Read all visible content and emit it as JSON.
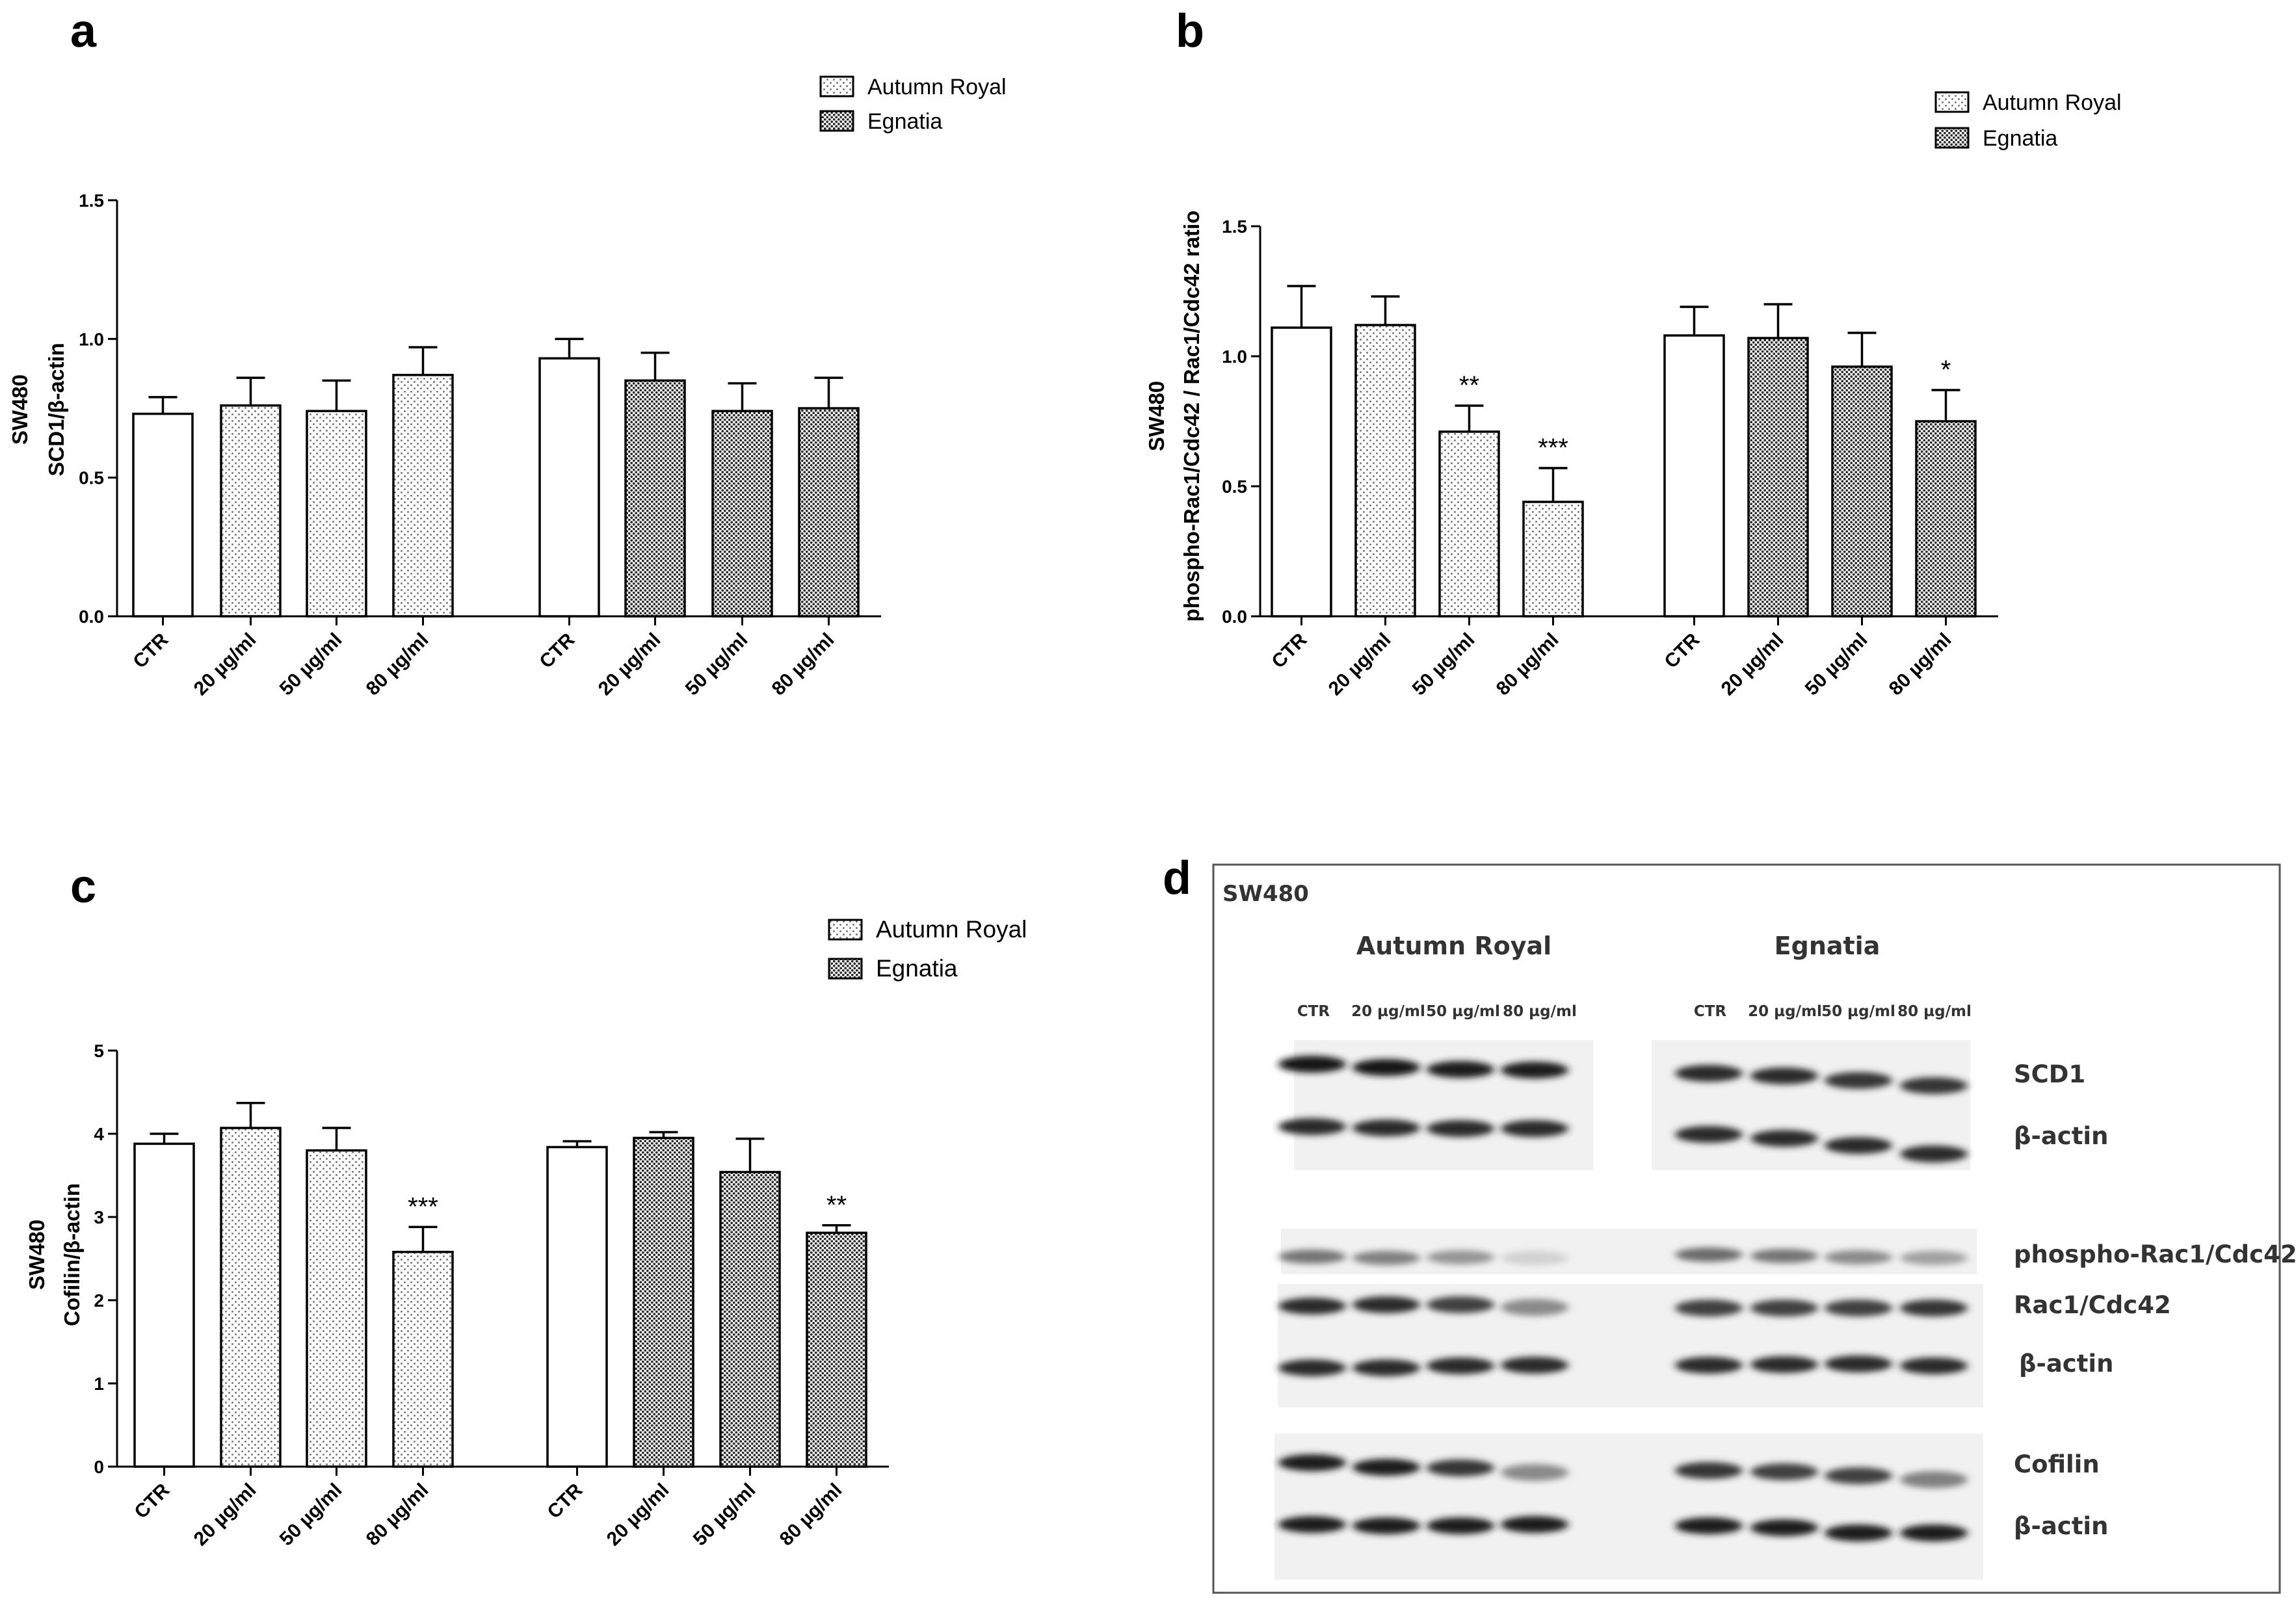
{
  "figure": {
    "panel_labels": [
      "a",
      "b",
      "c",
      "d"
    ]
  },
  "patterns": {
    "autumn": {
      "name": "Autumn Royal",
      "dot_color": "#7a7a7a"
    },
    "egnatia": {
      "name": "Egnatia",
      "dot_color": "#2a2a2a"
    }
  },
  "chart_data": [
    {
      "panel": "a",
      "type": "bar",
      "ylabel_line1": "SW480",
      "ylabel_line2": "SCD1/β-actin",
      "ylim": [
        0,
        1.5
      ],
      "yticks": [
        "0.0",
        "0.5",
        "1.0",
        "1.5"
      ],
      "ytick_values": [
        0,
        0.5,
        1.0,
        1.5
      ],
      "legend": [
        "Autumn Royal",
        "Egnatia"
      ],
      "groups": [
        {
          "name": "Autumn Royal",
          "categories": [
            "CTR",
            "20 µg/ml",
            "50 µg/ml",
            "80 µg/ml"
          ],
          "values": [
            0.73,
            0.76,
            0.74,
            0.87
          ],
          "errors": [
            0.06,
            0.1,
            0.11,
            0.1
          ],
          "sig": [
            "",
            "",
            "",
            ""
          ]
        },
        {
          "name": "Egnatia",
          "categories": [
            "CTR",
            "20 µg/ml",
            "50 µg/ml",
            "80 µg/ml"
          ],
          "values": [
            0.93,
            0.85,
            0.74,
            0.75
          ],
          "errors": [
            0.07,
            0.1,
            0.1,
            0.11
          ],
          "sig": [
            "",
            "",
            "",
            ""
          ]
        }
      ]
    },
    {
      "panel": "b",
      "type": "bar",
      "ylabel_line1": "SW480",
      "ylabel_line2": "phospho-Rac1/Cdc42 / Rac1/Cdc42 ratio",
      "ylim": [
        0,
        1.5
      ],
      "yticks": [
        "0.0",
        "0.5",
        "1.0",
        "1.5"
      ],
      "ytick_values": [
        0,
        0.5,
        1.0,
        1.5
      ],
      "legend": [
        "Autumn Royal",
        "Egnatia"
      ],
      "groups": [
        {
          "name": "Autumn Royal",
          "categories": [
            "CTR",
            "20 µg/ml",
            "50 µg/ml",
            "80 µg/ml"
          ],
          "values": [
            1.11,
            1.12,
            0.71,
            0.44
          ],
          "errors": [
            0.16,
            0.11,
            0.1,
            0.13
          ],
          "sig": [
            "",
            "",
            "**",
            "***"
          ]
        },
        {
          "name": "Egnatia",
          "categories": [
            "CTR",
            "20 µg/ml",
            "50 µg/ml",
            "80 µg/ml"
          ],
          "values": [
            1.08,
            1.07,
            0.96,
            0.75
          ],
          "errors": [
            0.11,
            0.13,
            0.13,
            0.12
          ],
          "sig": [
            "",
            "",
            "",
            "*"
          ]
        }
      ]
    },
    {
      "panel": "c",
      "type": "bar",
      "ylabel_line1": "SW480",
      "ylabel_line2": "Cofilin/β-actin",
      "ylim": [
        0,
        5
      ],
      "yticks": [
        "0",
        "1",
        "2",
        "3",
        "4",
        "5"
      ],
      "ytick_values": [
        0,
        1,
        2,
        3,
        4,
        5
      ],
      "legend": [
        "Autumn Royal",
        "Egnatia"
      ],
      "groups": [
        {
          "name": "Autumn Royal",
          "categories": [
            "CTR",
            "20 µg/ml",
            "50 µg/ml",
            "80 µg/ml"
          ],
          "values": [
            3.88,
            4.07,
            3.8,
            2.58
          ],
          "errors": [
            0.12,
            0.3,
            0.27,
            0.3
          ],
          "sig": [
            "",
            "",
            "",
            "***"
          ]
        },
        {
          "name": "Egnatia",
          "categories": [
            "CTR",
            "20 µg/ml",
            "50 µg/ml",
            "80 µg/ml"
          ],
          "values": [
            3.84,
            3.95,
            3.54,
            2.81
          ],
          "errors": [
            0.07,
            0.07,
            0.4,
            0.09
          ],
          "sig": [
            "",
            "",
            "",
            "**"
          ]
        }
      ]
    }
  ],
  "blot": {
    "cell_line": "SW480",
    "group_titles": [
      "Autumn Royal",
      "Egnatia"
    ],
    "lane_labels": [
      "CTR",
      "20 µg/ml",
      "50 µg/ml",
      "80 µg/ml"
    ],
    "labels": [
      "SCD1",
      "β-actin",
      "phospho-Rac1/Cdc42",
      "Rac1/Cdc42",
      "β-actin",
      "Cofilin",
      "β-actin"
    ],
    "intensities": [
      [
        [
          1.0,
          1.0,
          0.95,
          0.95
        ],
        [
          0.9,
          0.9,
          0.85,
          0.85
        ]
      ],
      [
        [
          0.9,
          0.9,
          0.9,
          0.9
        ],
        [
          0.9,
          0.9,
          0.9,
          0.9
        ]
      ],
      [
        [
          0.55,
          0.5,
          0.4,
          0.12
        ],
        [
          0.6,
          0.55,
          0.45,
          0.35
        ]
      ],
      [
        [
          0.9,
          0.9,
          0.8,
          0.45
        ],
        [
          0.8,
          0.8,
          0.8,
          0.85
        ]
      ],
      [
        [
          0.9,
          0.9,
          0.9,
          0.9
        ],
        [
          0.9,
          0.9,
          0.9,
          0.9
        ]
      ],
      [
        [
          0.95,
          0.95,
          0.85,
          0.45
        ],
        [
          0.85,
          0.8,
          0.8,
          0.5
        ]
      ],
      [
        [
          0.95,
          0.95,
          0.95,
          0.95
        ],
        [
          0.95,
          0.95,
          0.95,
          0.95
        ]
      ]
    ]
  }
}
